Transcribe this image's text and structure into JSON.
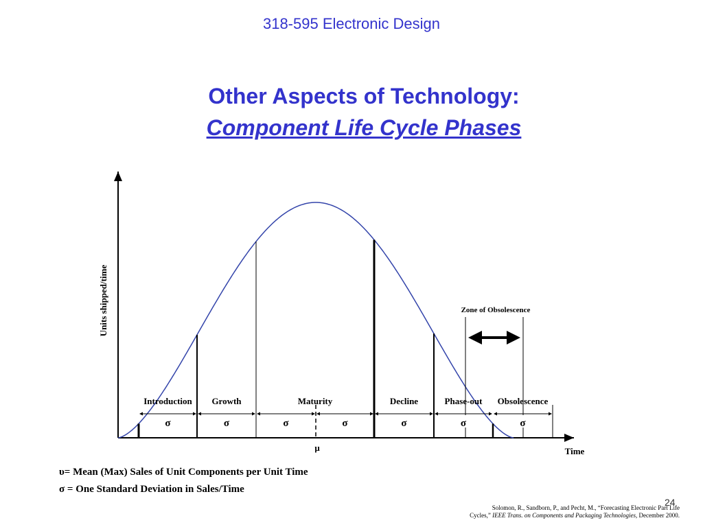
{
  "header": "318-595 Electronic Design",
  "title": {
    "line1": "Other Aspects of Technology:",
    "line2": "Component Life Cycle Phases"
  },
  "diagram": {
    "y_axis_label": "Units shipped/time",
    "x_axis_label": "Time",
    "mean_label": "μ",
    "zone_label": "Zone of Obsolescence",
    "phases": [
      "Introduction",
      "Growth",
      "Maturity",
      "Decline",
      "Phase-out",
      "Obsolescence"
    ],
    "sigmas": [
      "σ",
      "σ",
      "σ",
      "σ",
      "σ",
      "σ",
      "σ"
    ]
  },
  "legend": [
    "υ= Mean (Max) Sales of Unit Components per Unit Time",
    "σ = One Standard Deviation in Sales/Time"
  ],
  "citation": {
    "line1": "Solomon, R., Sandborn, P., and Pecht, M., “Forecasting Electronic Part Life",
    "line2_start": "Cycles,”",
    "line2_journal": "IEEE Trans. on Components and Packaging Technologies",
    "line2_end": ", December 2000."
  },
  "slide_number": "24"
}
